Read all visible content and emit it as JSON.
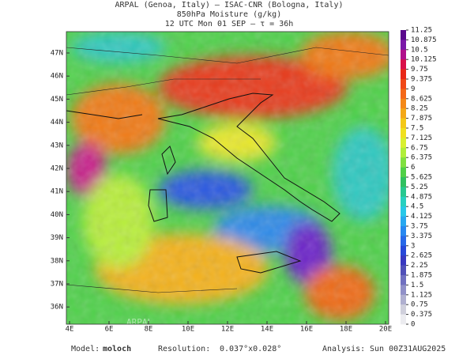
{
  "header": {
    "line1": "ARPAL (Genoa, Italy)  –  ISAC-CNR (Bologna, Italy)",
    "line2": "850hPa Moisture (g/kg)",
    "line3": "12 UTC Mon 01 SEP  –  τ = 36h"
  },
  "map": {
    "lat_labels": [
      "47N",
      "46N",
      "45N",
      "44N",
      "43N",
      "42N",
      "41N",
      "40N",
      "39N",
      "38N",
      "37N",
      "36N"
    ],
    "lon_labels": [
      "4E",
      "6E",
      "8E",
      "10E",
      "12E",
      "14E",
      "16E",
      "18E",
      "20E"
    ],
    "watermark": "ARPAL"
  },
  "colorbar": {
    "labels": [
      11.25,
      10.875,
      10.5,
      10.125,
      9.75,
      9.375,
      9,
      8.625,
      8.25,
      7.875,
      7.5,
      7.125,
      6.75,
      6.375,
      6,
      5.625,
      5.25,
      4.875,
      4.5,
      4.125,
      3.75,
      3.375,
      3,
      2.625,
      2.25,
      1.875,
      1.5,
      1.125,
      0.75,
      0.375,
      0
    ]
  },
  "footer": {
    "model_label": "Model:",
    "model": "moloch",
    "resolution_label": "Resolution:",
    "resolution": "0.037°x0.028°",
    "analysis_label": "Analysis:",
    "analysis": "Sun 00Z31AUG2025"
  }
}
